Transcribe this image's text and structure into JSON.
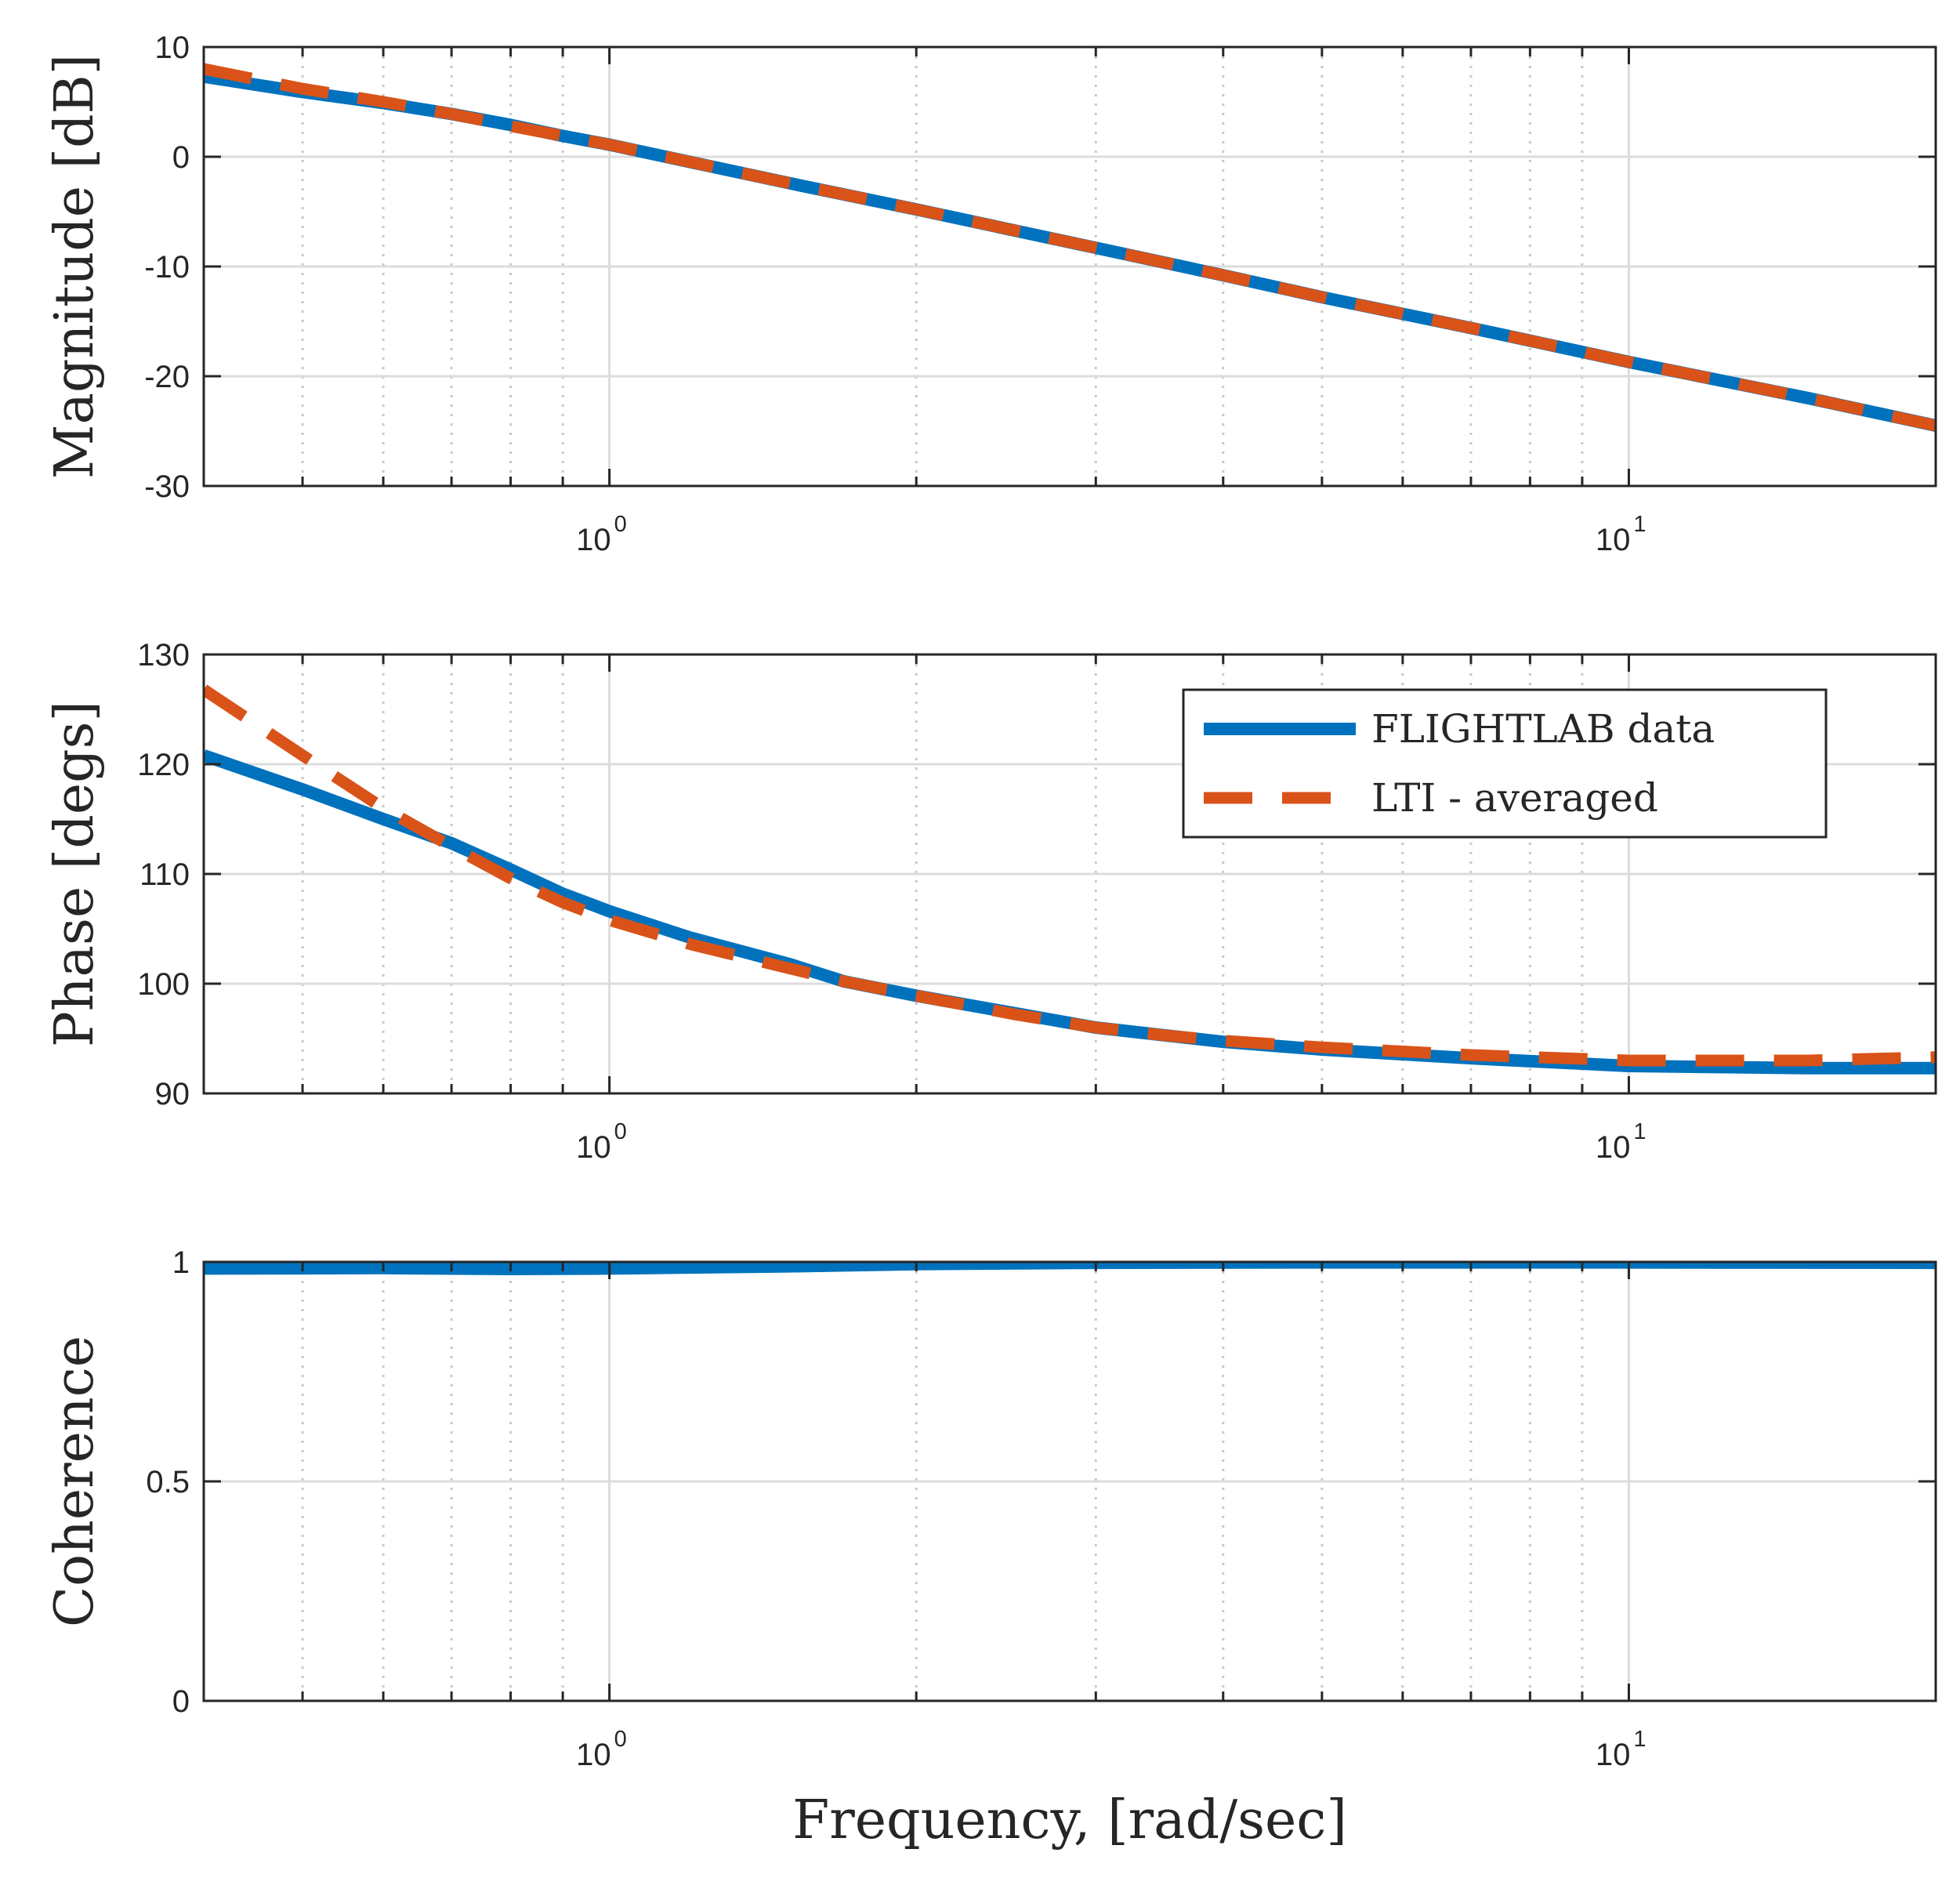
{
  "colors": {
    "flightlab": "#0072BD",
    "lti": "#D95319",
    "grid": "#DCDCDC",
    "axis": "#262626"
  },
  "chart_data": [
    {
      "type": "line",
      "panel": "magnitude",
      "ylabel": "Magnitude [dB]",
      "xlabel": "",
      "xscale": "log",
      "xlim": [
        0.4,
        20
      ],
      "ylim": [
        -30,
        10
      ],
      "yticks": [
        "10",
        "0",
        "-10",
        "-20",
        "-30"
      ],
      "ytick_values": [
        10,
        0,
        -10,
        -20,
        -30
      ],
      "xticks": [
        {
          "base": "10",
          "exp": "0",
          "value": 1
        },
        {
          "base": "10",
          "exp": "1",
          "value": 10
        }
      ],
      "series": [
        {
          "name": "FLIGHTLAB data",
          "style": "solid",
          "x": [
            0.4,
            0.5,
            0.6,
            0.7,
            0.8,
            0.9,
            1,
            1.5,
            2,
            3,
            4,
            5,
            7,
            10,
            15,
            20
          ],
          "y": [
            7.3,
            5.9,
            4.9,
            3.9,
            2.9,
            1.9,
            1.1,
            -2.4,
            -4.8,
            -8.3,
            -10.8,
            -12.8,
            -15.6,
            -18.7,
            -22.0,
            -24.5
          ]
        },
        {
          "name": "LTI - averaged",
          "style": "dashed",
          "x": [
            0.4,
            0.5,
            0.6,
            0.7,
            0.8,
            0.9,
            1,
            1.5,
            2,
            3,
            4,
            5,
            7,
            10,
            15,
            20
          ],
          "y": [
            8.0,
            6.2,
            5.0,
            3.9,
            2.8,
            1.9,
            1.1,
            -2.4,
            -4.8,
            -8.3,
            -10.8,
            -12.8,
            -15.6,
            -18.7,
            -22.0,
            -24.5
          ]
        }
      ]
    },
    {
      "type": "line",
      "panel": "phase",
      "ylabel": "Phase [degs]",
      "xlabel": "",
      "xscale": "log",
      "xlim": [
        0.4,
        20
      ],
      "ylim": [
        90,
        130
      ],
      "yticks": [
        "130",
        "120",
        "110",
        "100",
        "90"
      ],
      "ytick_values": [
        130,
        120,
        110,
        100,
        90
      ],
      "xticks": [
        {
          "base": "10",
          "exp": "0",
          "value": 1
        },
        {
          "base": "10",
          "exp": "1",
          "value": 10
        }
      ],
      "legend": {
        "position": "top-right",
        "entries": [
          "FLIGHTLAB data",
          "LTI - averaged"
        ]
      },
      "series": [
        {
          "name": "FLIGHTLAB data",
          "style": "solid",
          "x": [
            0.4,
            0.5,
            0.6,
            0.7,
            0.8,
            0.9,
            1,
            1.2,
            1.5,
            1.7,
            2,
            2.5,
            3,
            3.5,
            4,
            5,
            7,
            10,
            15,
            20
          ],
          "y": [
            120.8,
            117.7,
            115.0,
            112.8,
            110.4,
            108.2,
            106.6,
            104.2,
            101.8,
            100.2,
            98.9,
            97.3,
            96.0,
            95.3,
            94.7,
            94.0,
            93.2,
            92.5,
            92.3,
            92.3
          ]
        },
        {
          "name": "LTI - averaged",
          "style": "dashed",
          "x": [
            0.4,
            0.5,
            0.6,
            0.7,
            0.8,
            0.9,
            1,
            1.2,
            1.5,
            1.7,
            2,
            2.5,
            3,
            3.5,
            4,
            5,
            7,
            10,
            15,
            20
          ],
          "y": [
            126.8,
            120.8,
            116.0,
            112.5,
            109.6,
            107.4,
            105.8,
            103.6,
            101.4,
            100.2,
            98.9,
            97.2,
            96.0,
            95.3,
            94.8,
            94.2,
            93.5,
            93.0,
            93.0,
            93.3
          ]
        }
      ]
    },
    {
      "type": "line",
      "panel": "coherence",
      "ylabel": "Coherence",
      "xlabel": "Frequency, [rad/sec]",
      "xscale": "log",
      "xlim": [
        0.4,
        20
      ],
      "ylim": [
        0,
        1
      ],
      "yticks": [
        "1",
        "0.5",
        "0"
      ],
      "ytick_values": [
        1,
        0.5,
        0
      ],
      "xticks": [
        {
          "base": "10",
          "exp": "0",
          "value": 1
        },
        {
          "base": "10",
          "exp": "1",
          "value": 10
        }
      ],
      "series": [
        {
          "name": "FLIGHTLAB data",
          "style": "solid",
          "x": [
            0.4,
            0.6,
            0.8,
            1,
            1.5,
            2,
            3,
            5,
            10,
            20
          ],
          "y": [
            0.985,
            0.986,
            0.984,
            0.985,
            0.99,
            0.995,
            0.998,
            0.999,
            0.999,
            0.998
          ]
        }
      ]
    }
  ]
}
